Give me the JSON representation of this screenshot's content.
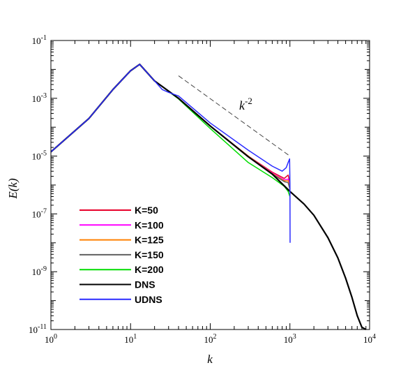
{
  "chart_data": {
    "type": "line",
    "title": "",
    "xlabel": "k",
    "ylabel": "E(k)",
    "xscale": "log",
    "yscale": "log",
    "xlim": [
      1,
      10000
    ],
    "ylim": [
      1e-11,
      0.1
    ],
    "grid": false,
    "legend_position": "lower-left",
    "x_tick_labels": [
      {
        "base": "10",
        "exp": "0"
      },
      {
        "base": "10",
        "exp": "1"
      },
      {
        "base": "10",
        "exp": "2"
      },
      {
        "base": "10",
        "exp": "3"
      },
      {
        "base": "10",
        "exp": "4"
      }
    ],
    "y_tick_labels": [
      {
        "base": "10",
        "exp": "-1"
      },
      {
        "base": "10",
        "exp": "-3"
      },
      {
        "base": "10",
        "exp": "-5"
      },
      {
        "base": "10",
        "exp": "-7"
      },
      {
        "base": "10",
        "exp": "-9"
      },
      {
        "base": "10",
        "exp": "-11"
      }
    ],
    "series": [
      {
        "name": "K=50",
        "color": "#e8002a",
        "x": [
          1,
          3,
          6,
          10,
          13,
          20,
          40,
          100,
          300,
          600,
          850,
          950,
          1000
        ],
        "y": [
          1.4e-05,
          0.0002,
          0.002,
          0.009,
          0.015,
          0.004,
          0.001,
          0.00011,
          1e-05,
          2.8e-06,
          1.7e-06,
          2.2e-06,
          1.2e-06
        ]
      },
      {
        "name": "K=100",
        "color": "#ff00ff",
        "x": [
          1,
          3,
          6,
          10,
          13,
          20,
          40,
          100,
          300,
          600,
          850,
          950,
          1000
        ],
        "y": [
          1.4e-05,
          0.0002,
          0.002,
          0.009,
          0.015,
          0.004,
          0.001,
          0.00011,
          1e-05,
          2.6e-06,
          1.5e-06,
          1.6e-06,
          9e-07
        ]
      },
      {
        "name": "K=125",
        "color": "#ff8000",
        "x": [
          1,
          3,
          6,
          10,
          13,
          20,
          40,
          100,
          300,
          600,
          850,
          950,
          1000
        ],
        "y": [
          1.4e-05,
          0.0002,
          0.002,
          0.009,
          0.015,
          0.004,
          0.001,
          0.00011,
          1e-05,
          2.5e-06,
          1.4e-06,
          1.4e-06,
          8e-07
        ]
      },
      {
        "name": "K=150",
        "color": "#606060",
        "x": [
          1,
          3,
          6,
          10,
          13,
          20,
          40,
          100,
          300,
          600,
          850,
          950,
          1000
        ],
        "y": [
          1.4e-05,
          0.0002,
          0.002,
          0.009,
          0.015,
          0.004,
          0.001,
          0.00011,
          9.5e-06,
          2.4e-06,
          1.3e-06,
          1.2e-06,
          7e-07
        ]
      },
      {
        "name": "K=200",
        "color": "#00dd00",
        "x": [
          1,
          3,
          6,
          10,
          13,
          20,
          40,
          100,
          300,
          600,
          850,
          950,
          1000
        ],
        "y": [
          1.4e-05,
          0.0002,
          0.002,
          0.009,
          0.015,
          0.004,
          0.00095,
          9e-05,
          6e-06,
          1.8e-06,
          9e-07,
          6e-07,
          4e-07
        ]
      },
      {
        "name": "DNS",
        "color": "#000000",
        "x": [
          1,
          3,
          6,
          10,
          13,
          20,
          40,
          100,
          300,
          600,
          1000,
          1500,
          2000,
          3000,
          4000,
          5000,
          6000,
          7000,
          8000,
          9000
        ],
        "y": [
          1.4e-05,
          0.0002,
          0.002,
          0.009,
          0.015,
          0.004,
          0.001,
          0.00011,
          9.5e-06,
          2.4e-06,
          6e-07,
          2.2e-07,
          9e-08,
          1.5e-08,
          3e-09,
          6e-10,
          1.3e-10,
          3e-11,
          1.2e-11,
          1e-11
        ]
      },
      {
        "name": "UDNS",
        "color": "#2b2bff",
        "x": [
          1,
          3,
          6,
          10,
          13,
          20,
          25,
          30,
          40,
          100,
          300,
          600,
          800,
          900,
          950,
          990,
          1000,
          1005
        ],
        "y": [
          1.4e-05,
          0.0002,
          0.002,
          0.009,
          0.015,
          0.004,
          0.002,
          0.0016,
          0.0012,
          0.00014,
          1.6e-05,
          4.5e-06,
          3e-06,
          4e-06,
          6e-06,
          8e-06,
          1e-06,
          1e-08
        ]
      }
    ],
    "reference_line": {
      "label_base": "k",
      "label_exp": "-2",
      "x": [
        40,
        1000
      ],
      "y": [
        0.006,
        1e-05
      ]
    }
  }
}
